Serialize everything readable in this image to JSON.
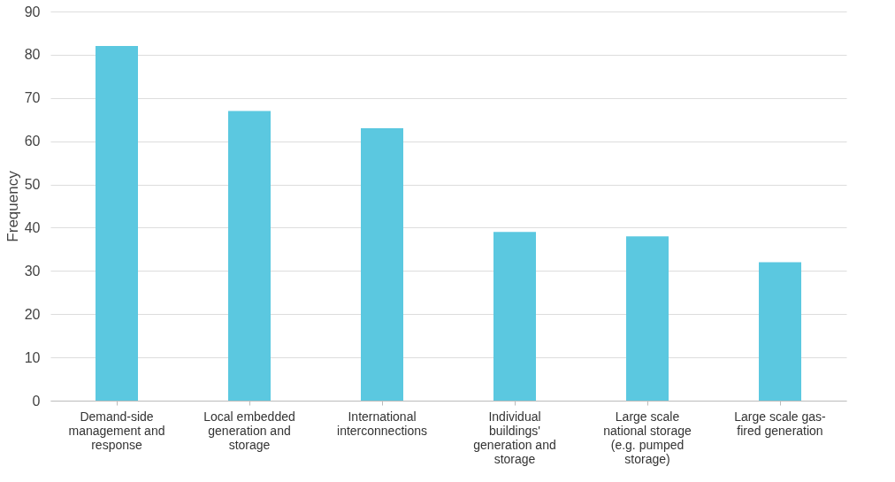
{
  "chart_data": {
    "type": "bar",
    "ylabel": "Frequency",
    "categories": [
      "Demand-side management and response",
      "Local embedded generation and storage",
      "International interconnections",
      "Individual buildings' generation and storage",
      "Large scale national storage (e.g. pumped storage)",
      "Large scale gas-fired generation"
    ],
    "values": [
      82,
      67,
      63,
      39,
      38,
      32
    ],
    "color": "#5bc8e0",
    "ylim": [
      0,
      90
    ],
    "yticks": [
      0,
      10,
      20,
      30,
      40,
      50,
      60,
      70,
      80,
      90
    ],
    "grid": "y"
  }
}
